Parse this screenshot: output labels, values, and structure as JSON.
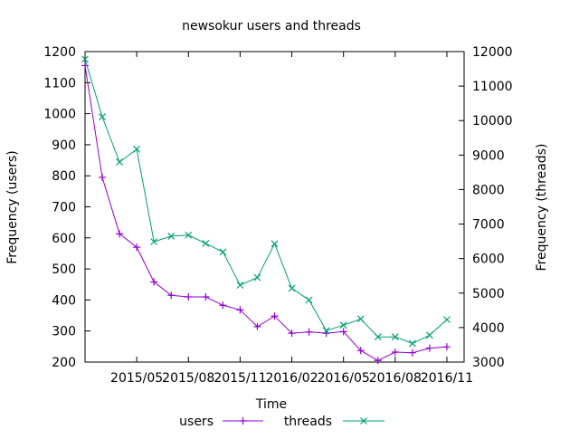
{
  "chart_data": {
    "type": "line",
    "title": "newsokur users and threads",
    "xlabel": "Time",
    "ylabel": "Frequency (users)",
    "y2label": "Frequency (threads)",
    "x": [
      "2015-02",
      "2015-03",
      "2015-04",
      "2015-05",
      "2015-06",
      "2015-07",
      "2015-08",
      "2015-09",
      "2015-10",
      "2015-11",
      "2015-12",
      "2016-01",
      "2016-02",
      "2016-03",
      "2016-04",
      "2016-05",
      "2016-06",
      "2016-07",
      "2016-08",
      "2016-09",
      "2016-10",
      "2016-11",
      "2016-12"
    ],
    "x_ticks": [
      "2015/05",
      "2015/08",
      "2015/11",
      "2016/02",
      "2016/05",
      "2016/08",
      "2016/11"
    ],
    "ylim": [
      200,
      1200
    ],
    "y_ticks": [
      200,
      300,
      400,
      500,
      600,
      700,
      800,
      900,
      1000,
      1100,
      1200
    ],
    "y2lim": [
      3000,
      12000
    ],
    "y2_ticks": [
      3000,
      4000,
      5000,
      6000,
      7000,
      8000,
      9000,
      10000,
      11000,
      12000
    ],
    "grid": false,
    "legend_position": "bottom-center",
    "series": [
      {
        "name": "users",
        "axis": "left",
        "color": "#9400d3",
        "marker": "plus",
        "values": [
          1155,
          795,
          613,
          570,
          458,
          415,
          410,
          410,
          383,
          368,
          314,
          348,
          293,
          297,
          293,
          298,
          237,
          205,
          232,
          230,
          245,
          249,
          null
        ]
      },
      {
        "name": "threads",
        "axis": "right",
        "color": "#009e73",
        "marker": "x",
        "values": [
          11780,
          10110,
          8800,
          9170,
          6490,
          6650,
          6680,
          6440,
          6190,
          5230,
          5450,
          6430,
          5140,
          4800,
          3910,
          4070,
          4250,
          3730,
          3730,
          3540,
          3780,
          4230,
          null
        ]
      }
    ]
  }
}
